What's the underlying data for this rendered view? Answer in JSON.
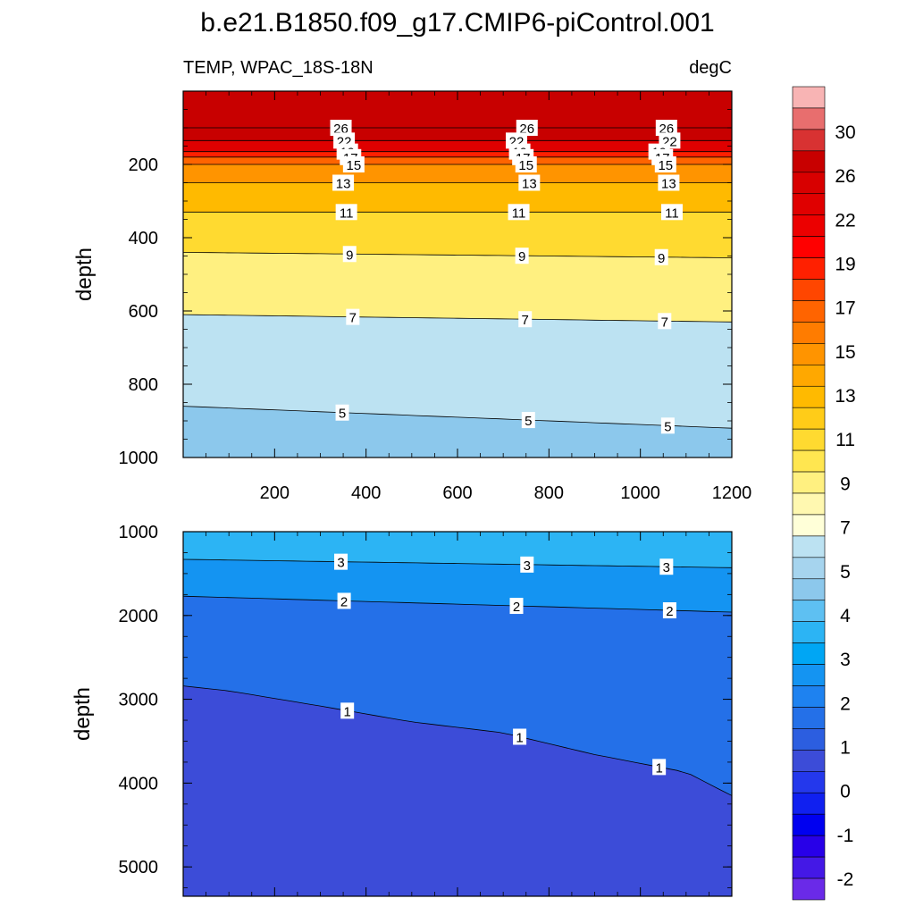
{
  "figure": {
    "title": "b.e21.B1850.f09_g17.CMIP6-piControl.001",
    "left_string": "TEMP, WPAC_18S-18N",
    "right_string": "degC"
  },
  "chart_data": [
    {
      "type": "heatmap",
      "panel": "upper",
      "ylabel": "depth",
      "xlabel": "",
      "xlim": [
        0,
        1200
      ],
      "ylim": [
        1000,
        0
      ],
      "y_reversed": true,
      "x_tick_labels": [
        "200",
        "400",
        "600",
        "800",
        "1000",
        "1200"
      ],
      "y_tick_labels": [
        "200",
        "400",
        "600",
        "800",
        "1000"
      ],
      "contour_levels_shown": [
        "26",
        "22",
        "19",
        "17",
        "15",
        "13",
        "11",
        "9",
        "7",
        "5"
      ],
      "isotherm_depths": [
        {
          "level": 26,
          "x": [
            0,
            1200
          ],
          "depth": [
            100,
            100
          ]
        },
        {
          "level": 22,
          "x": [
            0,
            1200
          ],
          "depth": [
            135,
            135
          ]
        },
        {
          "level": 19,
          "x": [
            0,
            1200
          ],
          "depth": [
            165,
            165
          ]
        },
        {
          "level": 17,
          "x": [
            0,
            1200
          ],
          "depth": [
            180,
            180
          ]
        },
        {
          "level": 15,
          "x": [
            0,
            1200
          ],
          "depth": [
            200,
            200
          ]
        },
        {
          "level": 13,
          "x": [
            0,
            1200
          ],
          "depth": [
            250,
            250
          ]
        },
        {
          "level": 11,
          "x": [
            0,
            1200
          ],
          "depth": [
            330,
            330
          ]
        },
        {
          "level": 9,
          "x": [
            0,
            1200
          ],
          "depth": [
            440,
            455
          ]
        },
        {
          "level": 7,
          "x": [
            0,
            1200
          ],
          "depth": [
            610,
            630
          ]
        },
        {
          "level": 5,
          "x": [
            0,
            1200
          ],
          "depth": [
            860,
            920
          ]
        }
      ]
    },
    {
      "type": "heatmap",
      "panel": "lower",
      "ylabel": "depth",
      "xlabel": "",
      "xlim": [
        0,
        1200
      ],
      "ylim": [
        5350,
        1000
      ],
      "y_reversed": true,
      "y_tick_labels": [
        "1000",
        "2000",
        "3000",
        "4000",
        "5000"
      ],
      "contour_levels_shown": [
        "3",
        "2",
        "1"
      ],
      "isotherm_depths": [
        {
          "level": 3,
          "x": [
            0,
            1200
          ],
          "depth": [
            1330,
            1430
          ]
        },
        {
          "level": 2,
          "x": [
            0,
            1200
          ],
          "depth": [
            1770,
            1960
          ]
        },
        {
          "level": 1,
          "x": [
            0,
            100,
            300,
            500,
            700,
            900,
            1100,
            1200
          ],
          "depth": [
            2840,
            2900,
            3080,
            3270,
            3400,
            3660,
            3870,
            4150
          ]
        }
      ]
    }
  ],
  "colorbar": {
    "labels": [
      "30",
      "26",
      "22",
      "19",
      "17",
      "15",
      "13",
      "11",
      "9",
      "7",
      "5",
      "4",
      "3",
      "2",
      "1",
      "0",
      "-1",
      "-2"
    ],
    "colors_top_to_bottom": [
      "#F8B4B4",
      "#E86E6E",
      "#D83232",
      "#C80000",
      "#D80000",
      "#E00000",
      "#EC0000",
      "#FF0000",
      "#FF2000",
      "#FF4600",
      "#FF6400",
      "#FF7C00",
      "#FF9400",
      "#FFA800",
      "#FFBA00",
      "#FFCC18",
      "#FFDA30",
      "#FFE650",
      "#FFF080",
      "#FFF8B0",
      "#FFFFD8",
      "#BCE2F2",
      "#A6D4EE",
      "#8CC8EC",
      "#5EC0F2",
      "#2CB4F4",
      "#00A6F4",
      "#1494F2",
      "#1E82F0",
      "#2470E8",
      "#2C5EE0",
      "#3C4CD8",
      "#2438EC",
      "#1020F0",
      "#0000F0",
      "#2800E8",
      "#4418E6",
      "#6A2AE8"
    ]
  }
}
